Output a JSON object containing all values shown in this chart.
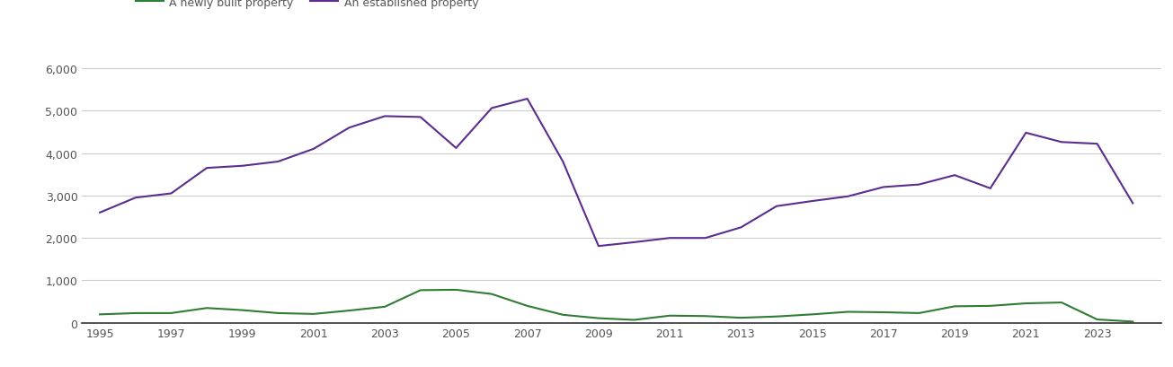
{
  "years": [
    1995,
    1996,
    1997,
    1998,
    1999,
    2000,
    2001,
    2002,
    2003,
    2004,
    2005,
    2006,
    2007,
    2008,
    2009,
    2010,
    2011,
    2012,
    2013,
    2014,
    2015,
    2016,
    2017,
    2018,
    2019,
    2020,
    2021,
    2022,
    2023,
    2024
  ],
  "newly_built": [
    200,
    230,
    230,
    350,
    300,
    230,
    210,
    290,
    380,
    770,
    780,
    680,
    400,
    190,
    110,
    70,
    170,
    160,
    120,
    150,
    200,
    260,
    250,
    230,
    390,
    400,
    460,
    480,
    80,
    30
  ],
  "established": [
    2600,
    2950,
    3050,
    3650,
    3700,
    3800,
    4100,
    4600,
    4870,
    4850,
    4120,
    5060,
    5280,
    3800,
    1810,
    1900,
    2000,
    2000,
    2250,
    2750,
    2870,
    2980,
    3200,
    3260,
    3480,
    3170,
    4480,
    4260,
    4220,
    2820
  ],
  "newly_built_color": "#2e7d32",
  "established_color": "#5b2d8e",
  "legend_newly": "A newly built property",
  "legend_established": "An established property",
  "ylim": [
    0,
    6500
  ],
  "yticks": [
    0,
    1000,
    2000,
    3000,
    4000,
    5000,
    6000
  ],
  "ytick_labels": [
    "0",
    "1,000",
    "2,000",
    "3,000",
    "4,000",
    "5,000",
    "6,000"
  ],
  "xtick_labels": [
    "1995",
    "1997",
    "1999",
    "2001",
    "2003",
    "2005",
    "2007",
    "2009",
    "2011",
    "2013",
    "2015",
    "2017",
    "2019",
    "2021",
    "2023"
  ],
  "background_color": "#ffffff",
  "grid_color": "#cccccc",
  "axis_line_color": "#333333",
  "tick_label_color": "#555555",
  "linewidth": 1.5,
  "fontsize_ticks": 9,
  "fontsize_legend": 9
}
